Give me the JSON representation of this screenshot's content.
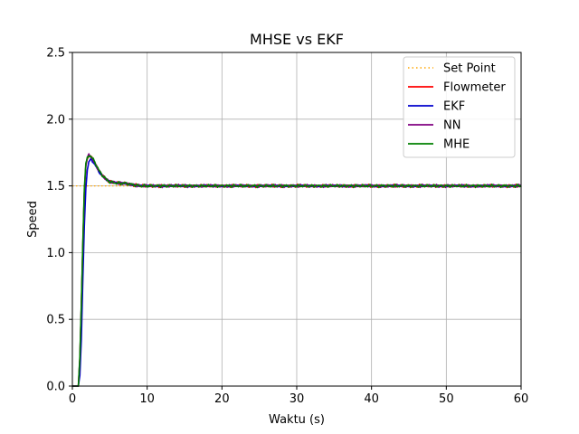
{
  "chart_data": {
    "type": "line",
    "title": "MHSE vs EKF",
    "xlabel": "Waktu (s)",
    "ylabel": "Speed",
    "xlim": [
      0,
      60
    ],
    "ylim": [
      0,
      2.5
    ],
    "xticks": [
      0,
      10,
      20,
      30,
      40,
      50,
      60
    ],
    "xtick_labels": [
      "0",
      "10",
      "20",
      "30",
      "40",
      "50",
      "60"
    ],
    "yticks": [
      0,
      0.5,
      1,
      1.5,
      2,
      2.5
    ],
    "ytick_labels": [
      "0.0",
      "0.5",
      "1.0",
      "1.5",
      "2.0",
      "2.5"
    ],
    "grid": true,
    "legend_position": "top-right",
    "series": [
      {
        "name": "Set Point",
        "color": "#ffa500",
        "style": "dotted",
        "x": [
          0,
          60
        ],
        "y": [
          1.5,
          1.5
        ]
      },
      {
        "name": "Flowmeter",
        "color": "#ff0000",
        "style": "solid",
        "x": [
          0,
          0.8,
          1.0,
          1.2,
          1.4,
          1.6,
          1.8,
          2.0,
          2.2,
          2.5,
          3.0,
          3.5,
          4.0,
          4.5,
          5.0,
          6.0,
          7.0,
          8.0,
          9.0,
          10.0,
          15,
          20,
          25,
          30,
          35,
          40,
          45,
          50,
          55,
          60
        ],
        "y": [
          0,
          0,
          0.2,
          0.6,
          1.05,
          1.45,
          1.65,
          1.71,
          1.73,
          1.72,
          1.67,
          1.62,
          1.58,
          1.55,
          1.53,
          1.52,
          1.52,
          1.51,
          1.5,
          1.5,
          1.5,
          1.5,
          1.5,
          1.5,
          1.5,
          1.5,
          1.5,
          1.5,
          1.5,
          1.5
        ]
      },
      {
        "name": "EKF",
        "color": "#0000cd",
        "style": "solid",
        "x": [
          0,
          0.8,
          1.0,
          1.2,
          1.4,
          1.6,
          1.8,
          2.0,
          2.2,
          2.5,
          3.0,
          3.5,
          4.0,
          4.5,
          5.0,
          6.0,
          7.0,
          8.0,
          9.0,
          10.0,
          15,
          20,
          25,
          30,
          35,
          40,
          45,
          50,
          55,
          60
        ],
        "y": [
          0,
          0,
          0.08,
          0.35,
          0.8,
          1.2,
          1.48,
          1.62,
          1.68,
          1.7,
          1.66,
          1.61,
          1.57,
          1.55,
          1.53,
          1.52,
          1.52,
          1.51,
          1.5,
          1.5,
          1.5,
          1.5,
          1.5,
          1.5,
          1.5,
          1.5,
          1.5,
          1.5,
          1.5,
          1.5
        ]
      },
      {
        "name": "NN",
        "color": "#800080",
        "style": "solid",
        "x": [
          0,
          0.8,
          1.0,
          1.2,
          1.4,
          1.6,
          1.8,
          2.0,
          2.2,
          2.5,
          3.0,
          3.5,
          4.0,
          4.5,
          5.0,
          6.0,
          7.0,
          8.0,
          9.0,
          10.0,
          15,
          20,
          25,
          30,
          35,
          40,
          45,
          50,
          55,
          60
        ],
        "y": [
          0,
          0,
          0.2,
          0.6,
          1.05,
          1.45,
          1.65,
          1.71,
          1.73,
          1.72,
          1.67,
          1.62,
          1.58,
          1.55,
          1.53,
          1.52,
          1.52,
          1.51,
          1.5,
          1.5,
          1.5,
          1.5,
          1.5,
          1.5,
          1.5,
          1.5,
          1.5,
          1.5,
          1.5,
          1.5
        ]
      },
      {
        "name": "MHE",
        "color": "#008000",
        "style": "solid",
        "x": [
          0,
          0.8,
          1.0,
          1.2,
          1.4,
          1.6,
          1.8,
          2.0,
          2.2,
          2.5,
          3.0,
          3.5,
          4.0,
          4.5,
          5.0,
          6.0,
          7.0,
          8.0,
          9.0,
          10.0,
          15,
          20,
          25,
          30,
          35,
          40,
          45,
          50,
          55,
          60
        ],
        "y": [
          0,
          0,
          0.22,
          0.62,
          1.08,
          1.48,
          1.67,
          1.71,
          1.73,
          1.72,
          1.68,
          1.62,
          1.58,
          1.55,
          1.53,
          1.52,
          1.52,
          1.51,
          1.5,
          1.5,
          1.5,
          1.5,
          1.5,
          1.5,
          1.5,
          1.5,
          1.5,
          1.5,
          1.5,
          1.5
        ]
      }
    ]
  }
}
